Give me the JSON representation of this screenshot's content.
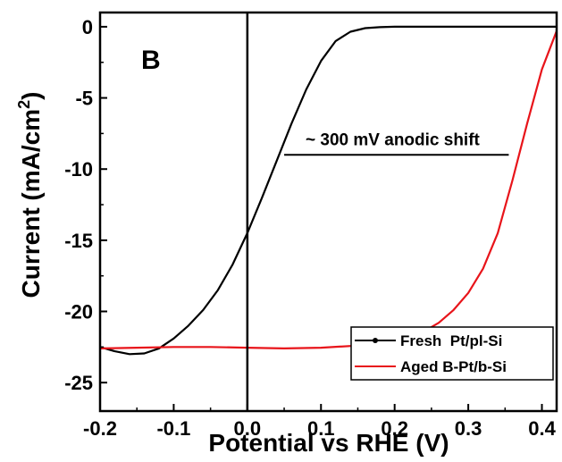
{
  "chart_data": {
    "type": "line",
    "panel_label": "B",
    "xlabel": "Potential vs RHE (V)",
    "ylabel": "Current (mA/cm",
    "ylabel_sup": "2",
    "ylabel_close": ")",
    "xlim": [
      -0.2,
      0.42
    ],
    "ylim": [
      -27,
      1
    ],
    "xticks": [
      -0.2,
      -0.1,
      0.0,
      0.1,
      0.2,
      0.3,
      0.4
    ],
    "xtick_labels": [
      "-0.2",
      "-0.1",
      "0.0",
      "0.1",
      "0.2",
      "0.3",
      "0.4"
    ],
    "yticks": [
      0,
      -5,
      -10,
      -15,
      -20,
      -25
    ],
    "ytick_labels": [
      "0",
      "-5",
      "-10",
      "-15",
      "-20",
      "-25"
    ],
    "vertical_line_x": 0.0,
    "annotation": {
      "text": "~ 300 mV anodic shift",
      "line_x": [
        0.05,
        0.355
      ],
      "line_y": -9.0
    },
    "legend_position": "bottom-right",
    "series": [
      {
        "name": "Fresh  Pt/pl-Si",
        "color": "#000000",
        "marker": "dot",
        "points": [
          [
            -0.2,
            -22.5
          ],
          [
            -0.18,
            -22.8
          ],
          [
            -0.16,
            -23.0
          ],
          [
            -0.14,
            -22.95
          ],
          [
            -0.12,
            -22.6
          ],
          [
            -0.1,
            -21.9
          ],
          [
            -0.08,
            -21.0
          ],
          [
            -0.06,
            -19.9
          ],
          [
            -0.04,
            -18.5
          ],
          [
            -0.02,
            -16.7
          ],
          [
            0.0,
            -14.5
          ],
          [
            0.02,
            -12.0
          ],
          [
            0.04,
            -9.4
          ],
          [
            0.06,
            -6.8
          ],
          [
            0.08,
            -4.4
          ],
          [
            0.1,
            -2.4
          ],
          [
            0.12,
            -1.0
          ],
          [
            0.14,
            -0.35
          ],
          [
            0.16,
            -0.1
          ],
          [
            0.18,
            -0.03
          ],
          [
            0.2,
            0.0
          ],
          [
            0.3,
            0.0
          ],
          [
            0.42,
            0.0
          ]
        ]
      },
      {
        "name": "Aged B-Pt/b-Si",
        "color": "#e8141a",
        "marker": "none",
        "points": [
          [
            -0.2,
            -22.6
          ],
          [
            -0.15,
            -22.55
          ],
          [
            -0.1,
            -22.5
          ],
          [
            -0.05,
            -22.5
          ],
          [
            0.0,
            -22.55
          ],
          [
            0.05,
            -22.6
          ],
          [
            0.1,
            -22.55
          ],
          [
            0.15,
            -22.4
          ],
          [
            0.18,
            -22.2
          ],
          [
            0.2,
            -22.0
          ],
          [
            0.22,
            -21.8
          ],
          [
            0.24,
            -21.4
          ],
          [
            0.26,
            -20.8
          ],
          [
            0.28,
            -19.9
          ],
          [
            0.3,
            -18.7
          ],
          [
            0.32,
            -17.0
          ],
          [
            0.34,
            -14.5
          ],
          [
            0.36,
            -10.8
          ],
          [
            0.38,
            -6.8
          ],
          [
            0.4,
            -3.0
          ],
          [
            0.42,
            -0.3
          ]
        ]
      }
    ]
  }
}
